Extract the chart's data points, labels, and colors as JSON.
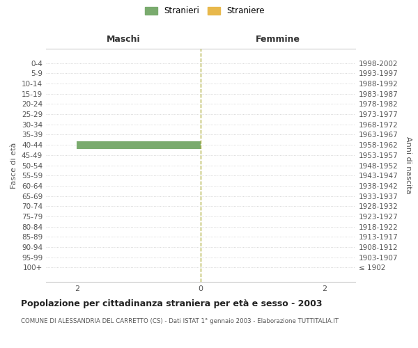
{
  "age_groups": [
    "100+",
    "95-99",
    "90-94",
    "85-89",
    "80-84",
    "75-79",
    "70-74",
    "65-69",
    "60-64",
    "55-59",
    "50-54",
    "45-49",
    "40-44",
    "35-39",
    "30-34",
    "25-29",
    "20-24",
    "15-19",
    "10-14",
    "5-9",
    "0-4"
  ],
  "birth_years": [
    "≤ 1902",
    "1903-1907",
    "1908-1912",
    "1913-1917",
    "1918-1922",
    "1923-1927",
    "1928-1932",
    "1933-1937",
    "1938-1942",
    "1943-1947",
    "1948-1952",
    "1953-1957",
    "1958-1962",
    "1963-1967",
    "1968-1972",
    "1973-1977",
    "1978-1982",
    "1983-1987",
    "1988-1992",
    "1993-1997",
    "1998-2002"
  ],
  "males_stranieri": [
    0,
    0,
    0,
    0,
    0,
    0,
    0,
    0,
    0,
    0,
    0,
    0,
    2,
    0,
    0,
    0,
    0,
    0,
    0,
    0,
    0
  ],
  "males_straniere": [
    0,
    0,
    0,
    0,
    0,
    0,
    0,
    0,
    0,
    0,
    0,
    0,
    0,
    0,
    0,
    0,
    0,
    0,
    0,
    0,
    0
  ],
  "females_stranieri": [
    0,
    0,
    0,
    0,
    0,
    0,
    0,
    0,
    0,
    0,
    0,
    0,
    0,
    0,
    0,
    0,
    0,
    0,
    0,
    0,
    0
  ],
  "females_straniere": [
    0,
    0,
    0,
    0,
    0,
    0,
    0,
    0,
    0,
    0,
    0,
    0,
    0,
    0,
    0,
    0,
    0,
    0,
    0,
    0,
    0
  ],
  "color_stranieri": "#7aab6e",
  "color_straniere": "#e8b84b",
  "xlim": 2.5,
  "xlabel_ticks": [
    -2,
    0,
    2
  ],
  "title": "Popolazione per cittadinanza straniera per età e sesso - 2003",
  "subtitle": "COMUNE DI ALESSANDRIA DEL CARRETTO (CS) - Dati ISTAT 1° gennaio 2003 - Elaborazione TUTTITALIA.IT",
  "ylabel_left": "Fasce di età",
  "ylabel_right": "Anni di nascita",
  "label_maschi": "Maschi",
  "label_femmine": "Femmine",
  "legend_stranieri": "Stranieri",
  "legend_straniere": "Straniere",
  "bg_color": "#ffffff",
  "grid_color": "#cccccc",
  "center_line_color": "#b0b040"
}
